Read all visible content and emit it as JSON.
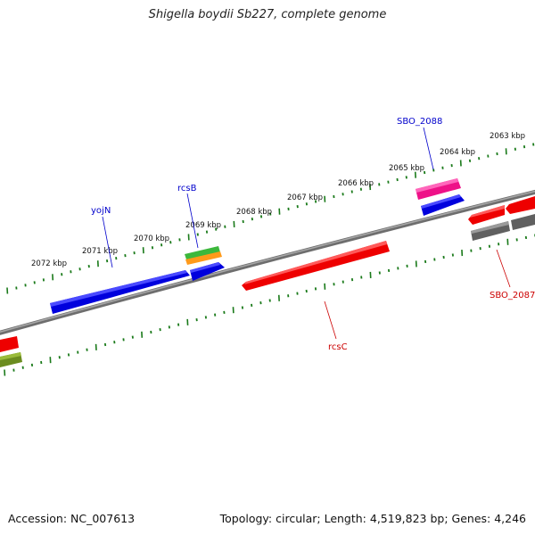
{
  "title": "Shigella boydii Sb227, complete genome",
  "footer": {
    "accession": "Accession: NC_007613",
    "topology": "Topology: circular; Length: 4,519,823 bp; Genes: 4,246"
  },
  "colors": {
    "backbone": "#808080",
    "ruler": "#1a7a1a",
    "forward_cds": "#0000ee",
    "reverse_cds": "#ee0000",
    "label_forward": "#0000cc",
    "label_reverse": "#cc0000"
  },
  "ruler_labels": [
    "2072 kbp",
    "2071 kbp",
    "2070 kbp",
    "2069 kbp",
    "2068 kbp",
    "2067 kbp",
    "2066 kbp",
    "2065 kbp",
    "2064 kbp",
    "2063 kbp"
  ],
  "gene_labels": [
    {
      "id": "yojN",
      "text": "yojN",
      "color": "#0000cc"
    },
    {
      "id": "rcsB",
      "text": "rcsB",
      "color": "#0000cc"
    },
    {
      "id": "SBO_2088",
      "text": "SBO_2088",
      "color": "#0000cc"
    },
    {
      "id": "rcsC",
      "text": "rcsC",
      "color": "#cc0000"
    },
    {
      "id": "SBO_2087",
      "text": "SBO_2087",
      "color": "#cc0000"
    }
  ]
}
